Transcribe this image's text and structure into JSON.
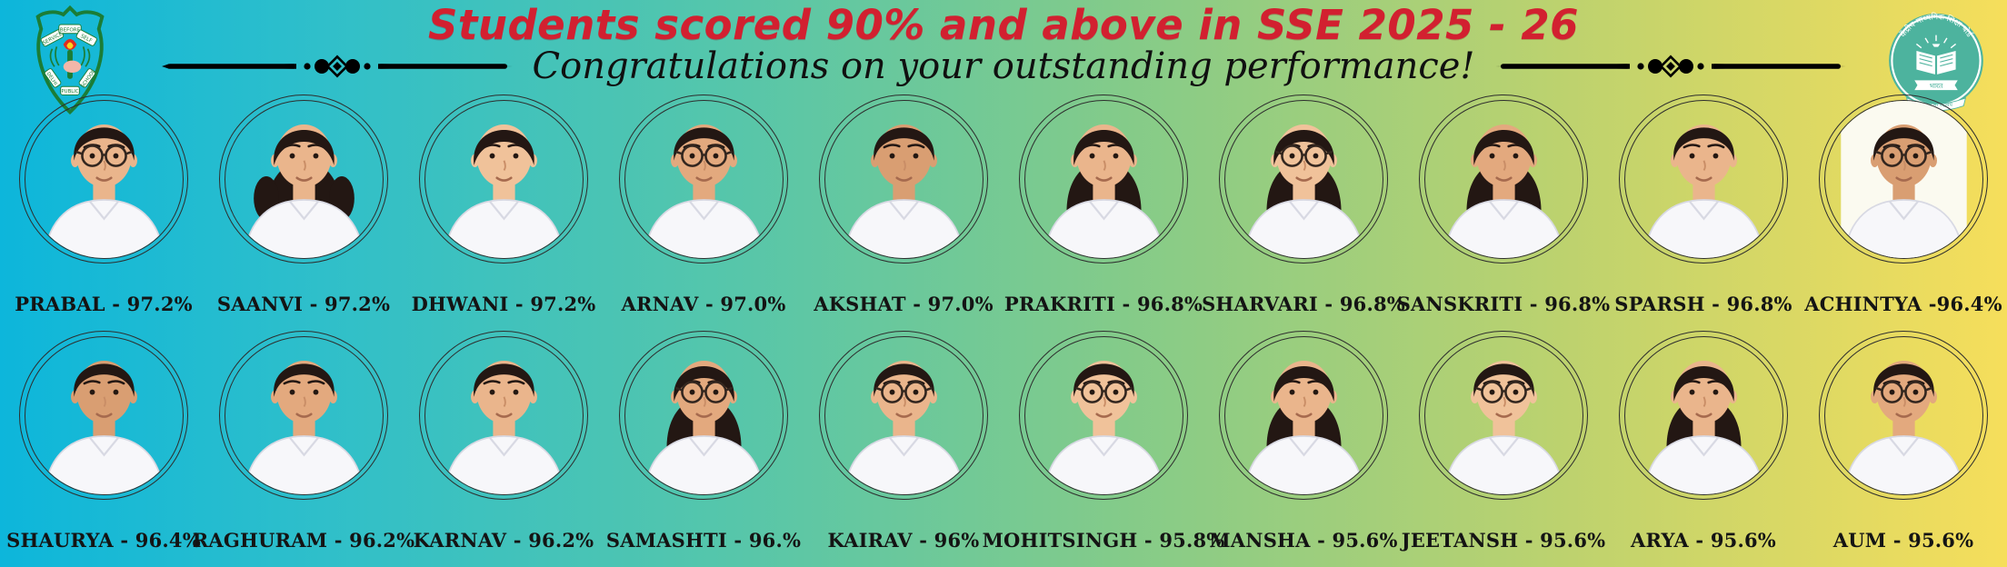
{
  "banner": {
    "title": "Students scored 90% and above in SSE 2025 - 26",
    "subtitle": "Congratulations on your outstanding performance!",
    "title_color": "#d22030",
    "background_gradient": [
      "#0db6db",
      "#55c6ab",
      "#84cb89",
      "#f6de5b"
    ]
  },
  "logos": {
    "left": {
      "name": "dps-school-crest",
      "motto": [
        "SERVICE",
        "BEFORE",
        "SELF"
      ],
      "school": [
        "DELHI",
        "PUBLIC",
        "SCHOOL"
      ],
      "crest_green": "#1b7d36"
    },
    "right": {
      "name": "cbse-board-logo",
      "arc_text": "केंद्रीय माध्यमिक शिक्षा बोर्ड",
      "banner_text": "भारत",
      "ribbon_text": "असतो मा सद्गमय",
      "teal": "#4db39e"
    }
  },
  "students": {
    "row1": [
      {
        "name": "PRABAL",
        "label": "PRABAL - 97.2%",
        "hair": "short",
        "glasses": true,
        "skin": "#eab58c"
      },
      {
        "name": "SAANVI",
        "label": "SAANVI - 97.2%",
        "hair": "pigtails",
        "glasses": false,
        "skin": "#eab58c"
      },
      {
        "name": "DHWANI",
        "label": "DHWANI - 97.2%",
        "hair": "tied",
        "glasses": false,
        "skin": "#f0c29a"
      },
      {
        "name": "ARNAV",
        "label": "ARNAV - 97.0%",
        "hair": "short",
        "glasses": true,
        "skin": "#e3a97e"
      },
      {
        "name": "AKSHAT",
        "label": "AKSHAT - 97.0%",
        "hair": "short",
        "glasses": false,
        "skin": "#d99e72"
      },
      {
        "name": "PRAKRITI",
        "label": "PRAKRITI - 96.8%",
        "hair": "long",
        "glasses": false,
        "skin": "#eab58c"
      },
      {
        "name": "SHARVARI",
        "label": "SHARVARI - 96.8%",
        "hair": "long",
        "glasses": true,
        "skin": "#f0c29a"
      },
      {
        "name": "SANSKRITI",
        "label": "SANSKRITI - 96.8%",
        "hair": "long",
        "glasses": false,
        "skin": "#e3a97e"
      },
      {
        "name": "SPARSH",
        "label": "SPARSH - 96.8%",
        "hair": "short",
        "glasses": false,
        "skin": "#eab58c"
      },
      {
        "name": "ACHINTYA",
        "label": "ACHINTYA -96.4%",
        "hair": "short",
        "glasses": true,
        "skin": "#d99e72",
        "photo_bg": "#fbfaf0"
      }
    ],
    "row2": [
      {
        "name": "SHAURYA",
        "label": "SHAURYA - 96.4%",
        "hair": "short",
        "glasses": false,
        "skin": "#d99e72"
      },
      {
        "name": "RAGHURAM",
        "label": "RAGHURAM - 96.2%",
        "hair": "short",
        "glasses": false,
        "skin": "#e3a97e"
      },
      {
        "name": "KARNAV",
        "label": "KARNAV - 96.2%",
        "hair": "short",
        "glasses": false,
        "skin": "#eab58c"
      },
      {
        "name": "SAMASHTI",
        "label": "SAMASHTI - 96.%",
        "hair": "long",
        "glasses": true,
        "skin": "#e3a97e"
      },
      {
        "name": "KAIRAV",
        "label": "KAIRAV - 96%",
        "hair": "short",
        "glasses": true,
        "skin": "#eab58c"
      },
      {
        "name": "MOHITSINGH",
        "label": "MOHITSINGH - 95.8%",
        "hair": "short",
        "glasses": true,
        "skin": "#f0c29a"
      },
      {
        "name": "MANSHA",
        "label": "MANSHA - 95.6%",
        "hair": "long",
        "glasses": false,
        "skin": "#eab58c"
      },
      {
        "name": "JEETANSH",
        "label": "JEETANSH - 95.6%",
        "hair": "short",
        "glasses": true,
        "skin": "#f0c29a"
      },
      {
        "name": "ARYA",
        "label": "ARYA - 95.6%",
        "hair": "long",
        "glasses": false,
        "skin": "#eab58c"
      },
      {
        "name": "AUM",
        "label": "AUM - 95.6%",
        "hair": "short",
        "glasses": true,
        "skin": "#e3a97e"
      }
    ]
  }
}
